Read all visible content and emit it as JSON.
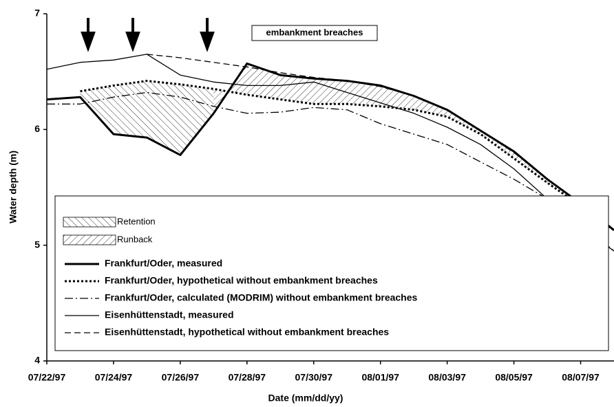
{
  "chart_data": {
    "type": "line",
    "annotation": "embankment breaches",
    "xlabel": "Date  (mm/dd/yy)",
    "ylabel": "Water depth  (m)",
    "x": [
      "07/22/97",
      "07/23/97",
      "07/24/97",
      "07/25/97",
      "07/26/97",
      "07/27/97",
      "07/28/97",
      "07/29/97",
      "07/30/97",
      "07/31/97",
      "08/01/97",
      "08/02/97",
      "08/03/97",
      "08/04/97",
      "08/05/97",
      "08/06/97",
      "08/07/97",
      "08/08/97"
    ],
    "xlim": [
      "07/22/97",
      "08/08/97"
    ],
    "xticks": [
      "07/22/97",
      "07/24/97",
      "07/26/97",
      "07/28/97",
      "07/30/97",
      "08/01/97",
      "08/03/97",
      "08/05/97",
      "08/07/97"
    ],
    "ylim": [
      4,
      7
    ],
    "yticks": [
      4,
      5,
      6,
      7
    ],
    "areas": [
      {
        "name": "Retention"
      },
      {
        "name": "Runback"
      }
    ],
    "series": [
      {
        "name": "Frankfurt/Oder, measured",
        "color": "#000000",
        "style": "solid",
        "width": 3,
        "values": [
          6.26,
          6.28,
          5.96,
          5.93,
          5.78,
          6.14,
          6.57,
          6.47,
          6.44,
          6.42,
          6.38,
          6.29,
          6.17,
          5.99,
          5.81,
          5.57,
          5.36,
          5.13
        ]
      },
      {
        "name": "Frankfurt/Oder, hypothetical without embankment breaches",
        "color": "#000000",
        "style": "dotted",
        "width": 3,
        "values": [
          null,
          6.33,
          6.38,
          6.42,
          6.39,
          6.35,
          6.3,
          6.26,
          6.22,
          6.22,
          6.2,
          6.17,
          6.11,
          5.96,
          5.75,
          5.54,
          5.34,
          5.13
        ]
      },
      {
        "name": "Frankfurt/Oder, calculated (MODRIM) without embankment breaches",
        "color": "#000000",
        "style": "dashdot",
        "width": 1.3,
        "values": [
          6.22,
          6.22,
          6.28,
          6.32,
          6.28,
          6.2,
          6.14,
          6.15,
          6.19,
          6.17,
          6.05,
          5.96,
          5.87,
          5.72,
          5.57,
          5.4,
          5.19,
          4.95
        ]
      },
      {
        "name": "Eisenhüttenstadt, measured",
        "color": "#000000",
        "style": "solid",
        "width": 1.3,
        "values": [
          6.52,
          6.58,
          6.6,
          6.65,
          6.47,
          6.41,
          6.38,
          6.38,
          6.41,
          6.32,
          6.23,
          6.14,
          6.02,
          5.87,
          5.66,
          5.4,
          5.16,
          4.95
        ]
      },
      {
        "name": "Eisenhüttenstadt, hypothetical without embankment breaches",
        "color": "#000000",
        "style": "dashed",
        "width": 1.3,
        "values": [
          null,
          null,
          null,
          6.65,
          6.62,
          6.58,
          6.54,
          6.49,
          6.45,
          6.42,
          6.37,
          6.29,
          6.17,
          5.99,
          5.8,
          5.57,
          5.36,
          5.13
        ]
      }
    ]
  }
}
